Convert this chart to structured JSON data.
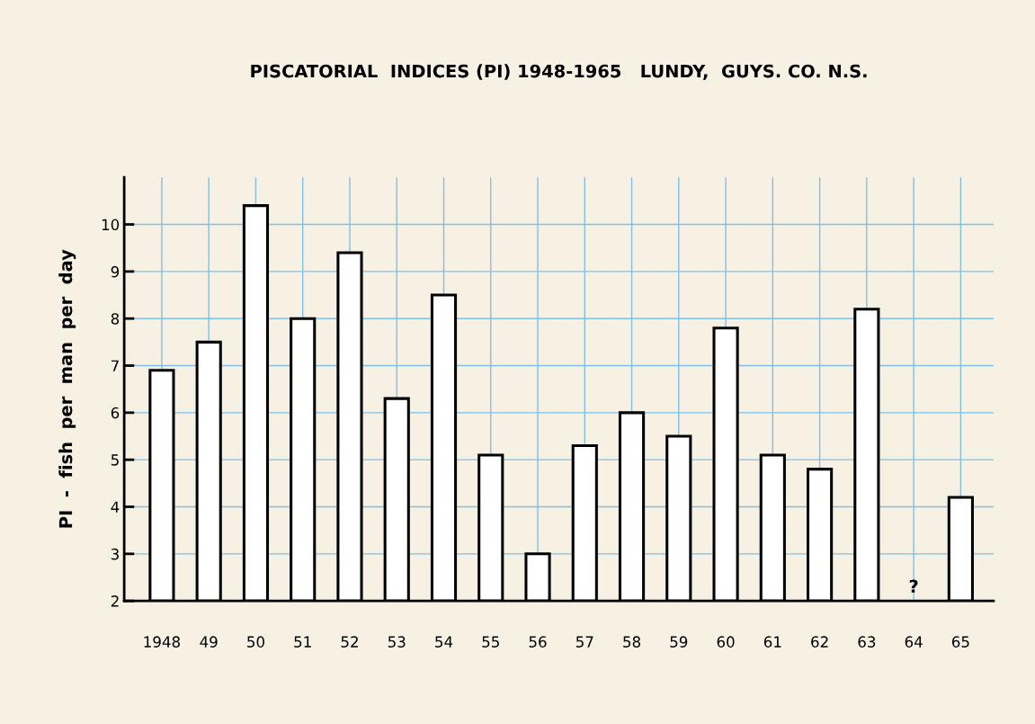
{
  "chart_data": {
    "type": "bar",
    "title": "PISCATORIAL  INDICES (PI) 1948-1965   LUNDY,  GUYS. CO. N.S.",
    "ylabel": "PI  -  fish  per  man  per  day",
    "categories": [
      "1948",
      "49",
      "50",
      "51",
      "52",
      "53",
      "54",
      "55",
      "56",
      "57",
      "58",
      "59",
      "60",
      "61",
      "62",
      "63",
      "64",
      "65"
    ],
    "values": [
      6.9,
      7.5,
      10.4,
      8.0,
      9.4,
      6.3,
      8.5,
      5.1,
      3.0,
      5.3,
      6.0,
      5.5,
      7.8,
      5.1,
      4.8,
      8.2,
      null,
      4.2
    ],
    "color": "#ffffff",
    "ylim": [
      2,
      11
    ],
    "yticks": [
      2,
      3,
      4,
      5,
      6,
      7,
      8,
      9,
      10
    ],
    "grid": true,
    "annotations": [
      "?"
    ]
  }
}
